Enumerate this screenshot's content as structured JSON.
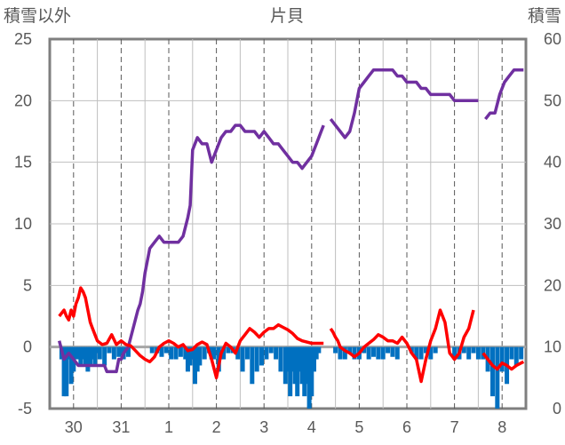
{
  "chart_data": {
    "type": "line",
    "title": "片貝",
    "ylabel_left": "積雪以外",
    "ylabel_right": "積雪",
    "ylim_left": [
      -5,
      25
    ],
    "ylim_right": [
      0,
      60
    ],
    "yticks_left": [
      "25",
      "20",
      "15",
      "10",
      "5",
      "0",
      "-5"
    ],
    "yticks_right": [
      "60",
      "50",
      "40",
      "30",
      "20",
      "10",
      "0"
    ],
    "x_labels": [
      "30",
      "31",
      "1",
      "2",
      "3",
      "4",
      "5",
      "6",
      "7",
      "8"
    ],
    "grid": true,
    "legend": "none",
    "colors": {
      "snow_depth": "#7030a0",
      "temperature": "#ff0000",
      "precip": "#0070c0",
      "axis": "#7f7f7f"
    },
    "series": [
      {
        "key": "snow_depth",
        "axis": "right",
        "x": [
          -0.6,
          -0.4,
          -0.2,
          0,
          0.2,
          0.4,
          0.6,
          0.8,
          1.0,
          1.2,
          1.3,
          1.4,
          1.5,
          1.6,
          1.8,
          1.9,
          2.0,
          2.1,
          2.3,
          2.5,
          2.7,
          2.8,
          2.9,
          3.0,
          3.1,
          3.2,
          3.4,
          3.6,
          3.8,
          4.0,
          4.2,
          4.4,
          4.6,
          4.8,
          4.9,
          5.0,
          5.1,
          5.2,
          5.4,
          5.6,
          5.8,
          6.0,
          6.2,
          6.4,
          6.6,
          6.8,
          7.0,
          7.2,
          7.4,
          7.6,
          7.8,
          8.0,
          8.2,
          8.4,
          8.6,
          8.8,
          9.0,
          9.2,
          9.4,
          9.6,
          9.8,
          10.0,
          10.2,
          10.4,
          10.5,
          null,
          10.8,
          11.0,
          11.2,
          11.4,
          11.6,
          11.8,
          12.0,
          12.2,
          12.4,
          12.6,
          12.8,
          13.0,
          13.2,
          13.4,
          13.6,
          13.8,
          14.0,
          14.2,
          14.4,
          14.6,
          14.8,
          15.0,
          15.2,
          15.4,
          15.6,
          15.8,
          16.0,
          16.2,
          16.4,
          16.6,
          16.8,
          17.0,
          null,
          17.3,
          17.5,
          17.7,
          17.9,
          18.1,
          18.3,
          18.5,
          18.7,
          18.9
        ],
        "values": [
          11,
          8,
          9,
          8,
          7,
          7,
          7,
          7,
          7,
          7,
          7,
          6,
          6,
          6,
          6,
          8,
          8,
          9,
          10,
          13,
          16,
          17,
          19,
          22,
          24,
          26,
          27,
          28,
          27,
          27,
          27,
          27,
          28,
          31,
          33,
          42,
          43,
          44,
          43,
          43,
          40,
          42,
          44,
          45,
          45,
          46,
          46,
          45,
          45,
          45,
          44,
          45,
          44,
          43,
          43,
          42,
          41,
          40,
          40,
          39,
          40,
          41,
          43,
          45,
          46,
          null,
          47,
          46,
          45,
          44,
          45,
          48,
          52,
          53,
          54,
          55,
          55,
          55,
          55,
          55,
          54,
          54,
          53,
          53,
          53,
          52,
          52,
          51,
          51,
          51,
          51,
          51,
          50,
          50,
          50,
          50,
          50,
          50,
          null,
          47,
          48,
          48,
          51,
          53,
          54,
          55,
          55,
          55
        ]
      },
      {
        "key": "temperature",
        "axis": "left",
        "x": [
          -0.6,
          -0.4,
          -0.3,
          -0.2,
          -0.1,
          0,
          0.1,
          0.2,
          0.3,
          0.4,
          0.5,
          0.6,
          0.7,
          0.8,
          0.9,
          1.0,
          1.2,
          1.4,
          1.6,
          1.8,
          2.0,
          2.2,
          2.4,
          2.6,
          2.8,
          3.0,
          3.2,
          3.4,
          3.6,
          3.8,
          4.0,
          4.2,
          4.4,
          4.6,
          4.8,
          5.0,
          5.2,
          5.4,
          5.6,
          5.8,
          6.0,
          6.2,
          6.4,
          6.6,
          6.8,
          7.0,
          7.2,
          7.4,
          7.6,
          7.8,
          8.0,
          8.2,
          8.4,
          8.6,
          8.8,
          9.0,
          9.2,
          9.4,
          9.6,
          9.8,
          10.0,
          10.2,
          10.4,
          10.5,
          null,
          10.8,
          10.9,
          11.0,
          11.1,
          11.2,
          11.4,
          11.6,
          11.8,
          12.0,
          12.2,
          12.4,
          12.6,
          12.8,
          13.0,
          13.2,
          13.4,
          13.6,
          13.8,
          14.0,
          14.2,
          14.4,
          14.6,
          14.8,
          15.0,
          15.2,
          15.4,
          15.6,
          15.8,
          16.0,
          16.2,
          16.4,
          16.6,
          16.8,
          17.0,
          17.2,
          17.4,
          17.6,
          17.8,
          18.0,
          18.2,
          18.4,
          18.6,
          18.8,
          18.9
        ],
        "values": [
          2.5,
          3,
          2.5,
          2.2,
          3,
          2.5,
          3.5,
          4,
          4.8,
          4.5,
          4,
          3,
          2,
          1.5,
          1,
          0.5,
          0.2,
          0.3,
          1,
          0.2,
          0.5,
          0.2,
          0.1,
          -0.3,
          -0.7,
          -1,
          -1.2,
          -0.8,
          0,
          0.3,
          0.5,
          0.3,
          0,
          0.2,
          -0.3,
          -0.2,
          0.2,
          0.4,
          0.2,
          -1,
          -2.5,
          -0.5,
          0.3,
          0,
          -0.5,
          0.5,
          1,
          1.5,
          1.2,
          0.8,
          1.2,
          1.5,
          1.5,
          1.8,
          1.6,
          1.4,
          1.1,
          0.7,
          0.5,
          0.4,
          0.3,
          0.3,
          0.3,
          0.3,
          null,
          1.5,
          1.2,
          0.8,
          0.5,
          0,
          -0.3,
          -0.5,
          -0.8,
          -0.5,
          0,
          0.3,
          0.6,
          1,
          0.8,
          0.5,
          0.5,
          0.3,
          0.8,
          0.3,
          -0.5,
          -1,
          -2.8,
          -1,
          0.5,
          1.5,
          3,
          2,
          -0.5,
          -1,
          -0.5,
          0.8,
          1.5,
          3,
          null,
          -0.5,
          -1,
          -1.5,
          -1.8,
          -1.3,
          -1.5,
          -1.8,
          -1.5,
          -1.3,
          -1.2
        ],
        "note_gap": "gap between day 7 and 8"
      },
      {
        "key": "precip",
        "axis": "left",
        "type": "bar",
        "x": [
          -0.5,
          -0.4,
          -0.3,
          -0.2,
          -0.1,
          0,
          0.1,
          0.2,
          0.3,
          0.4,
          0.5,
          0.6,
          0.7,
          0.8,
          0.9,
          1.0,
          1.1,
          1.3,
          1.5,
          1.7,
          1.9,
          2.0,
          2.1,
          2.2,
          2.3,
          3.3,
          3.5,
          3.7,
          3.9,
          4.1,
          4.3,
          4.5,
          4.7,
          4.8,
          4.9,
          5.0,
          5.1,
          5.2,
          5.3,
          5.5,
          5.7,
          5.8,
          5.9,
          6.1,
          6.3,
          6.5,
          6.7,
          6.9,
          7.1,
          7.3,
          7.5,
          7.7,
          7.9,
          8.1,
          8.3,
          8.5,
          8.7,
          8.9,
          9.0,
          9.1,
          9.2,
          9.3,
          9.4,
          9.5,
          9.6,
          9.7,
          9.8,
          9.9,
          10.0,
          10.1,
          10.2,
          10.3,
          11.0,
          11.2,
          11.4,
          11.6,
          11.8,
          12.0,
          12.2,
          12.4,
          12.6,
          12.8,
          13.0,
          13.2,
          13.4,
          13.6,
          14.2,
          14.4,
          14.6,
          14.8,
          15.0,
          15.2,
          16.0,
          16.2,
          16.4,
          16.6,
          16.8,
          17.0,
          17.2,
          17.4,
          17.6,
          17.8,
          18.0,
          18.2,
          18.4,
          18.6,
          18.8
        ],
        "values": [
          -1,
          -4,
          -4,
          -1,
          -3,
          -2,
          -1,
          -1,
          -1.5,
          -1,
          -1.5,
          -2,
          -1.5,
          -1,
          -1.5,
          -0.5,
          -1,
          -1.5,
          -0.5,
          -1,
          -0.8,
          -0.5,
          -1,
          -0.5,
          -0.8,
          -0.5,
          -0.5,
          -0.8,
          -0.5,
          -1,
          -1,
          -0.8,
          -1,
          -2,
          -1.5,
          -1,
          -3,
          -2,
          -1.5,
          -1,
          -0.5,
          -1,
          -1,
          -2,
          -1,
          -0.5,
          -0.5,
          -1,
          -2,
          -1,
          -3,
          -2,
          -1.5,
          -1,
          -0.5,
          -1,
          -2,
          -3,
          -2,
          -4,
          -2,
          -3,
          -4,
          -2,
          -3,
          -4,
          -3,
          -5,
          -4,
          -2,
          -1,
          -0.5,
          -0.5,
          -1,
          -1,
          -0.5,
          -1,
          -1,
          -0.5,
          -1,
          -0.8,
          -1,
          -1,
          -0.5,
          -0.8,
          -1,
          -0.5,
          -1,
          -1,
          -0.5,
          -1,
          -0.5,
          -1,
          -1,
          -0.5,
          -1,
          -0.5,
          -1,
          -1,
          -2,
          -4,
          -5,
          -2,
          -3,
          -1,
          -1.5,
          -1
        ]
      }
    ]
  }
}
